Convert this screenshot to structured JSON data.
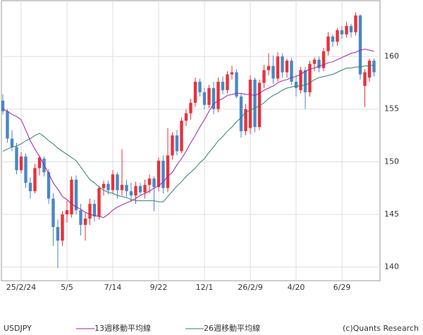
{
  "chart_data": {
    "type": "candlestick",
    "symbol": "USDJPY",
    "credit": "(c)Quants Research",
    "categories": [
      null,
      null,
      null,
      null,
      "25/2/24",
      null,
      null,
      null,
      null,
      null,
      null,
      null,
      null,
      null,
      "5/5",
      null,
      null,
      null,
      null,
      null,
      null,
      null,
      null,
      null,
      "7/14",
      null,
      null,
      null,
      null,
      null,
      null,
      null,
      null,
      null,
      "9/22",
      null,
      null,
      null,
      null,
      null,
      null,
      null,
      null,
      null,
      "12/1",
      null,
      null,
      null,
      null,
      null,
      null,
      null,
      null,
      null,
      "26/2/9",
      null,
      null,
      null,
      null,
      null,
      null,
      null,
      null,
      null,
      "4/20",
      null,
      null,
      null,
      null,
      null,
      null,
      null,
      null,
      null,
      "6/29",
      null,
      null,
      null,
      null,
      null,
      null,
      null
    ],
    "open": [
      155.8,
      154.8,
      152.2,
      151.4,
      149.2,
      150.5,
      148.0,
      147.2,
      149.4,
      150.3,
      149.0,
      146.5,
      143.8,
      142.5,
      145.0,
      145.0,
      148.3,
      145.4,
      144.0,
      144.6,
      146.0,
      144.8,
      147.5,
      147.9,
      147.3,
      148.8,
      147.3,
      147.8,
      147.2,
      146.8,
      147.7,
      147.1,
      147.8,
      148.4,
      147.6,
      150.1,
      147.5,
      150.6,
      152.5,
      151.0,
      153.9,
      154.6,
      155.6,
      157.6,
      156.6,
      155.4,
      157.0,
      155.0,
      157.6,
      156.8,
      158.3,
      158.5,
      156.2,
      152.9,
      153.2,
      157.8,
      153.3,
      157.5,
      158.7,
      159.1,
      157.9,
      160.0,
      158.5,
      159.6,
      157.6,
      156.8,
      158.7,
      156.6,
      159.3,
      159.7,
      158.9,
      160.5,
      161.9,
      161.4,
      162.5,
      162.1,
      162.9,
      162.3,
      163.9,
      157.2,
      158.0,
      159.6
    ],
    "high": [
      156.4,
      155.0,
      153.0,
      151.8,
      150.9,
      150.8,
      148.5,
      149.8,
      150.6,
      150.5,
      149.3,
      147.0,
      144.5,
      145.3,
      146.3,
      148.6,
      148.7,
      146.0,
      145.2,
      146.5,
      146.4,
      147.7,
      148.2,
      148.2,
      149.2,
      149.0,
      151.2,
      148.3,
      148.0,
      148.1,
      148.0,
      148.3,
      148.8,
      148.6,
      150.4,
      150.6,
      153.2,
      152.8,
      153.0,
      154.2,
      155.0,
      156.0,
      158.0,
      157.9,
      157.0,
      157.3,
      157.6,
      158.0,
      158.1,
      158.6,
      159.1,
      158.8,
      156.5,
      155.5,
      158.2,
      158.0,
      157.8,
      159.2,
      160.3,
      160.1,
      160.4,
      160.3,
      159.8,
      159.9,
      158.3,
      159.0,
      159.0,
      159.6,
      159.9,
      160.0,
      160.8,
      162.3,
      162.1,
      162.7,
      162.9,
      163.3,
      163.1,
      164.2,
      164.0,
      158.8,
      159.8,
      159.8
    ],
    "low": [
      154.5,
      151.8,
      151.0,
      148.8,
      148.9,
      147.5,
      146.5,
      147.0,
      148.7,
      148.6,
      146.0,
      142.0,
      139.9,
      142.0,
      144.2,
      144.7,
      145.0,
      143.0,
      142.5,
      144.0,
      144.3,
      144.5,
      146.8,
      146.9,
      147.0,
      146.5,
      146.8,
      146.7,
      146.2,
      146.0,
      146.9,
      146.5,
      147.0,
      145.3,
      147.2,
      147.0,
      147.1,
      150.2,
      150.6,
      150.8,
      153.4,
      154.0,
      155.2,
      156.2,
      155.0,
      155.1,
      154.5,
      154.7,
      156.4,
      156.5,
      157.8,
      156.0,
      152.3,
      152.5,
      152.6,
      152.8,
      153.0,
      157.0,
      158.2,
      157.4,
      157.6,
      158.0,
      158.0,
      157.3,
      156.2,
      156.5,
      155.0,
      156.2,
      158.6,
      158.5,
      158.6,
      160.1,
      160.9,
      161.0,
      161.7,
      161.8,
      161.8,
      162.0,
      157.8,
      155.2,
      157.6,
      158.1
    ],
    "close": [
      154.8,
      152.2,
      151.4,
      149.2,
      150.5,
      148.0,
      147.2,
      149.4,
      150.4,
      149.0,
      146.5,
      143.8,
      142.5,
      145.0,
      145.4,
      148.3,
      145.4,
      144.0,
      144.6,
      146.0,
      144.8,
      147.5,
      147.9,
      147.3,
      148.8,
      147.3,
      147.8,
      147.2,
      146.8,
      147.7,
      147.1,
      147.8,
      148.4,
      147.6,
      150.1,
      147.5,
      150.6,
      152.5,
      151.0,
      153.9,
      154.6,
      155.6,
      157.6,
      156.6,
      155.4,
      157.0,
      155.0,
      157.6,
      156.8,
      158.3,
      158.5,
      156.2,
      152.9,
      155.0,
      157.8,
      153.3,
      157.5,
      158.7,
      159.1,
      157.9,
      160.0,
      158.5,
      159.6,
      157.6,
      157.0,
      158.7,
      156.6,
      159.3,
      159.7,
      158.9,
      160.5,
      161.9,
      161.4,
      162.5,
      162.1,
      162.9,
      162.3,
      163.9,
      158.3,
      158.5,
      159.6,
      158.5
    ],
    "up_color": "#e5323b",
    "down_color": "#4a87c4",
    "series": [
      {
        "name": "13週移動平均線",
        "color": "#a020a0",
        "values": [
          155.0,
          154.8,
          154.5,
          154.3,
          154.0,
          153.0,
          152.0,
          151.2,
          150.5,
          149.7,
          148.9,
          148.0,
          147.4,
          146.7,
          146.4,
          146.0,
          145.7,
          145.5,
          145.2,
          145.0,
          144.9,
          144.8,
          144.7,
          145.0,
          145.4,
          145.7,
          145.9,
          146.1,
          146.3,
          146.5,
          146.8,
          147.0,
          147.2,
          147.5,
          147.7,
          148.1,
          148.6,
          149.0,
          149.7,
          150.3,
          151.0,
          151.8,
          152.5,
          153.3,
          154.0,
          154.8,
          155.5,
          155.8,
          156.0,
          156.3,
          156.4,
          156.5,
          156.5,
          156.4,
          156.4,
          156.3,
          156.5,
          156.8,
          157.0,
          157.2,
          157.5,
          157.7,
          157.8,
          158.0,
          158.1,
          158.3,
          158.6,
          158.8,
          158.9,
          159.1,
          159.2,
          159.4,
          159.5,
          159.7,
          159.9,
          160.1,
          160.3,
          160.4,
          160.6,
          160.7,
          160.6,
          160.5
        ]
      },
      {
        "name": "26週移動平均線",
        "color": "#2f7f73",
        "values": [
          151.0,
          151.2,
          151.4,
          151.5,
          151.7,
          152.0,
          152.2,
          152.5,
          152.7,
          152.4,
          152.0,
          151.7,
          151.3,
          151.0,
          150.7,
          150.4,
          150.1,
          149.5,
          148.9,
          148.3,
          148.0,
          147.6,
          147.3,
          147.1,
          147.0,
          146.8,
          146.7,
          146.6,
          146.4,
          146.3,
          146.3,
          146.3,
          146.3,
          146.3,
          146.2,
          146.2,
          146.7,
          147.2,
          147.7,
          148.1,
          148.6,
          149.0,
          149.4,
          149.9,
          150.3,
          150.9,
          151.4,
          152.0,
          152.4,
          152.9,
          153.3,
          153.8,
          154.2,
          154.7,
          154.9,
          155.1,
          155.3,
          155.6,
          156.0,
          156.3,
          156.5,
          156.8,
          157.0,
          157.1,
          157.2,
          157.2,
          157.3,
          157.5,
          157.8,
          158.0,
          158.1,
          158.2,
          158.3,
          158.5,
          158.7,
          158.9,
          158.9,
          159.0,
          159.0,
          159.1,
          159.1,
          159.2
        ]
      }
    ],
    "ylim": [
      138.7,
      165.3
    ],
    "yticks": [
      140,
      145,
      150,
      155,
      160
    ],
    "grid": true
  }
}
